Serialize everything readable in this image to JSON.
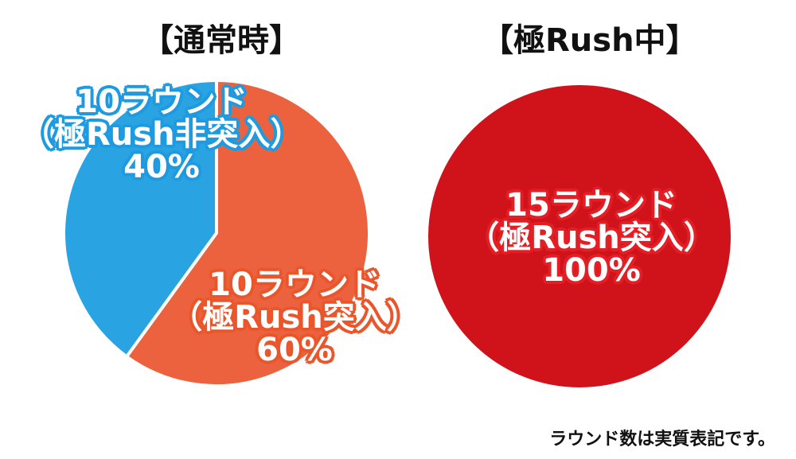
{
  "chart_data": [
    {
      "type": "pie",
      "title": "【通常時】",
      "slices": [
        {
          "lines": [
            "10ラウンド",
            "（極Rush非突入）",
            "40%"
          ],
          "value": 40,
          "color": "#29a3e1"
        },
        {
          "lines": [
            "10ラウンド",
            "（極Rush突入）",
            "60%"
          ],
          "value": 60,
          "color": "#ec623f"
        }
      ]
    },
    {
      "type": "pie",
      "title": "【極Rush中】",
      "slices": [
        {
          "lines": [
            "15ラウンド",
            "（極Rush突入）",
            "100%"
          ],
          "value": 100,
          "color": "#d0121b"
        }
      ]
    }
  ],
  "footnote": "ラウンド数は実質表記です。"
}
